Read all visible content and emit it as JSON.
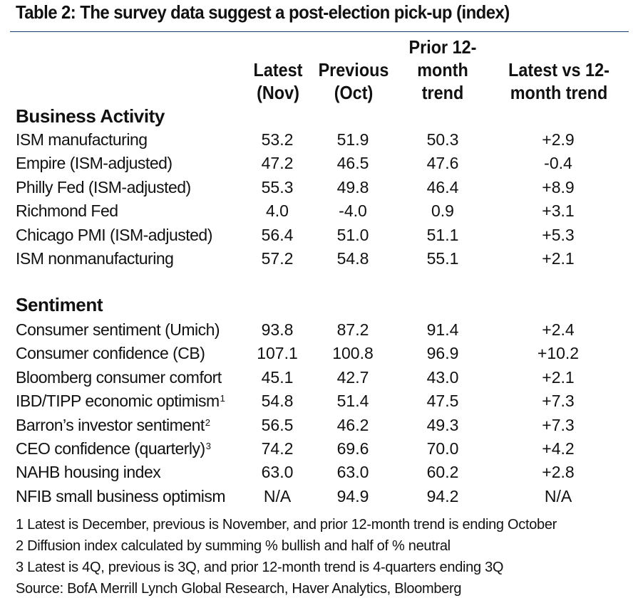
{
  "title": "Table 2: The survey data suggest a post-election pick-up (index)",
  "headers": {
    "latest": [
      "Latest",
      "(Nov)"
    ],
    "previous": [
      "Previous",
      "(Oct)"
    ],
    "prior": [
      "Prior 12-",
      "month",
      "trend"
    ],
    "vs": [
      "Latest vs 12-",
      "month trend"
    ]
  },
  "sections": [
    {
      "name": "Business Activity",
      "rows": [
        {
          "label": "ISM manufacturing",
          "sup": "",
          "latest": "53.2",
          "previous": "51.9",
          "prior": "50.3",
          "vs": "+2.9"
        },
        {
          "label": "Empire (ISM-adjusted)",
          "sup": "",
          "latest": "47.2",
          "previous": "46.5",
          "prior": "47.6",
          "vs": "-0.4"
        },
        {
          "label": "Philly Fed (ISM-adjusted)",
          "sup": "",
          "latest": "55.3",
          "previous": "49.8",
          "prior": "46.4",
          "vs": "+8.9"
        },
        {
          "label": "Richmond Fed",
          "sup": "",
          "latest": "4.0",
          "previous": "-4.0",
          "prior": "0.9",
          "vs": "+3.1"
        },
        {
          "label": "Chicago PMI (ISM-adjusted)",
          "sup": "",
          "latest": "56.4",
          "previous": "51.0",
          "prior": "51.1",
          "vs": "+5.3"
        },
        {
          "label": "ISM nonmanufacturing",
          "sup": "",
          "latest": "57.2",
          "previous": "54.8",
          "prior": "55.1",
          "vs": "+2.1"
        }
      ]
    },
    {
      "name": "Sentiment",
      "rows": [
        {
          "label": "Consumer sentiment (Umich)",
          "sup": "",
          "latest": "93.8",
          "previous": "87.2",
          "prior": "91.4",
          "vs": "+2.4"
        },
        {
          "label": "Consumer confidence (CB)",
          "sup": "",
          "latest": "107.1",
          "previous": "100.8",
          "prior": "96.9",
          "vs": "+10.2"
        },
        {
          "label": "Bloomberg consumer comfort",
          "sup": "",
          "latest": "45.1",
          "previous": "42.7",
          "prior": "43.0",
          "vs": "+2.1"
        },
        {
          "label": "IBD/TIPP economic optimism",
          "sup": "1",
          "latest": "54.8",
          "previous": "51.4",
          "prior": "47.5",
          "vs": "+7.3"
        },
        {
          "label": "Barron’s investor sentiment",
          "sup": "2",
          "latest": "56.5",
          "previous": "46.2",
          "prior": "49.3",
          "vs": "+7.3"
        },
        {
          "label": "CEO confidence (quarterly)",
          "sup": "3",
          "latest": "74.2",
          "previous": "69.6",
          "prior": "70.0",
          "vs": "+4.2"
        },
        {
          "label": "NAHB housing index",
          "sup": "",
          "latest": "63.0",
          "previous": "63.0",
          "prior": "60.2",
          "vs": "+2.8"
        },
        {
          "label": "NFIB small business optimism",
          "sup": "",
          "latest": "N/A",
          "previous": "94.9",
          "prior": "94.2",
          "vs": "N/A"
        }
      ]
    }
  ],
  "notes": [
    "1 Latest is December, previous is November, and prior 12-month trend is ending October",
    "2 Diffusion index calculated by summing % bullish and half of % neutral",
    "3 Latest is 4Q, previous is 3Q, and prior 12-month trend is 4-quarters ending 3Q",
    "Source: BofA Merrill Lynch Global Research, Haver Analytics, Bloomberg"
  ],
  "colors": {
    "rule": "#1d3a6e"
  }
}
